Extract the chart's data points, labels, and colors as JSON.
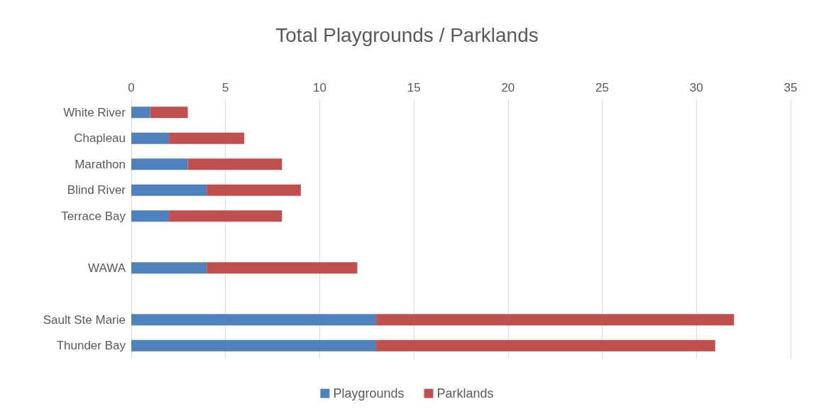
{
  "chart_data": {
    "type": "bar",
    "title": "Total Playgrounds / Parklands",
    "orientation": "horizontal",
    "stacked": true,
    "categories": [
      "White River",
      "Chapleau",
      "Marathon",
      "Blind River",
      "Terrace Bay",
      null,
      "WAWA",
      null,
      "Sault Ste Marie",
      "Thunder Bay"
    ],
    "series": [
      {
        "name": "Playgrounds",
        "color": "#4f81bd",
        "values": [
          1,
          2,
          3,
          4,
          2,
          null,
          4,
          null,
          13,
          13
        ]
      },
      {
        "name": "Parklands",
        "color": "#c0504d",
        "values": [
          2,
          4,
          5,
          5,
          6,
          null,
          8,
          null,
          19,
          18
        ]
      }
    ],
    "xlim": [
      0,
      35
    ],
    "xticks": [
      0,
      5,
      10,
      15,
      20,
      25,
      30,
      35
    ],
    "grid": "x",
    "legend": "bottom"
  }
}
